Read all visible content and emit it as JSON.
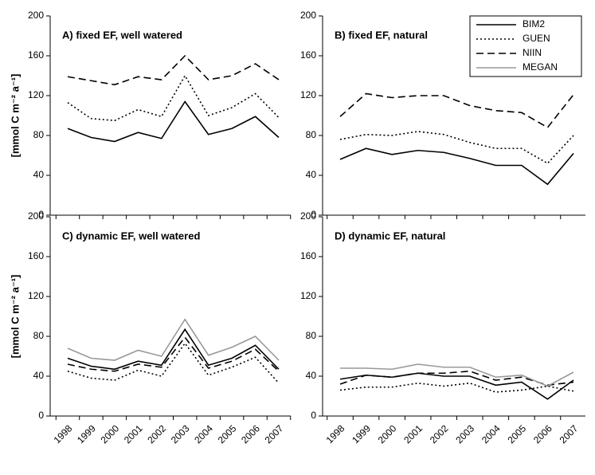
{
  "chart_data": [
    {
      "type": "line",
      "title": "A) fixed EF, well watered",
      "ylabel": "[mmol C m⁻² a⁻¹]",
      "ylim": [
        0,
        200
      ],
      "yticks": [
        0,
        40,
        80,
        120,
        160,
        200
      ],
      "series": [
        {
          "name": "BIM2",
          "color": "#000000",
          "dash": "solid",
          "values": [
            87,
            78,
            74,
            83,
            77,
            114,
            81,
            87,
            99,
            78
          ]
        },
        {
          "name": "GUEN",
          "color": "#000000",
          "dash": "dotted",
          "values": [
            113,
            97,
            95,
            106,
            99,
            140,
            100,
            108,
            122,
            98
          ]
        },
        {
          "name": "NIIN",
          "color": "#000000",
          "dash": "dashed",
          "values": [
            139,
            135,
            131,
            139,
            136,
            160,
            136,
            140,
            152,
            136
          ]
        }
      ]
    },
    {
      "type": "line",
      "title": "B) fixed EF, natural",
      "legend": "upper right",
      "ylim": [
        0,
        200
      ],
      "yticks": [
        0,
        40,
        80,
        120,
        160,
        200
      ],
      "series": [
        {
          "name": "BIM2",
          "color": "#000000",
          "dash": "solid",
          "values": [
            56,
            67,
            61,
            65,
            63,
            57,
            50,
            50,
            31,
            62
          ]
        },
        {
          "name": "GUEN",
          "color": "#000000",
          "dash": "dotted",
          "values": [
            76,
            81,
            80,
            84,
            81,
            73,
            67,
            67,
            52,
            80
          ]
        },
        {
          "name": "NIIN",
          "color": "#000000",
          "dash": "dashed",
          "values": [
            99,
            122,
            118,
            120,
            120,
            110,
            105,
            103,
            88,
            121
          ]
        },
        {
          "name": "MEGAN",
          "color": "#999999",
          "dash": "solid",
          "values": [
            null,
            null,
            null,
            null,
            null,
            null,
            null,
            null,
            null,
            null
          ]
        }
      ]
    },
    {
      "type": "line",
      "title": "C) dynamic EF, well watered",
      "ylabel": "[mmol C m⁻² a⁻¹]",
      "categories": [
        "1998",
        "1999",
        "2000",
        "2001",
        "2002",
        "2003",
        "2004",
        "2005",
        "2006",
        "2007"
      ],
      "ylim": [
        0,
        200
      ],
      "yticks": [
        0,
        40,
        80,
        120,
        160,
        200
      ],
      "series": [
        {
          "name": "BIM2",
          "color": "#000000",
          "dash": "solid",
          "values": [
            58,
            50,
            47,
            55,
            51,
            87,
            51,
            58,
            71,
            47
          ]
        },
        {
          "name": "GUEN",
          "color": "#000000",
          "dash": "dotted",
          "values": [
            45,
            38,
            36,
            46,
            40,
            73,
            41,
            49,
            59,
            33
          ]
        },
        {
          "name": "NIIN",
          "color": "#000000",
          "dash": "dashed",
          "values": [
            52,
            47,
            45,
            52,
            49,
            79,
            48,
            55,
            67,
            45
          ]
        },
        {
          "name": "MEGAN",
          "color": "#999999",
          "dash": "solid",
          "values": [
            68,
            58,
            56,
            66,
            60,
            97,
            61,
            69,
            80,
            56
          ]
        }
      ]
    },
    {
      "type": "line",
      "title": "D) dynamic EF, natural",
      "categories": [
        "1998",
        "1999",
        "2000",
        "2001",
        "2002",
        "2003",
        "2004",
        "2005",
        "2006",
        "2007"
      ],
      "ylim": [
        0,
        200
      ],
      "yticks": [
        0,
        40,
        80,
        120,
        160,
        200
      ],
      "series": [
        {
          "name": "BIM2",
          "color": "#000000",
          "dash": "solid",
          "values": [
            37,
            41,
            39,
            43,
            40,
            40,
            31,
            34,
            17,
            36
          ]
        },
        {
          "name": "GUEN",
          "color": "#000000",
          "dash": "dotted",
          "values": [
            26,
            29,
            29,
            33,
            30,
            33,
            24,
            26,
            30,
            25
          ]
        },
        {
          "name": "NIIN",
          "color": "#000000",
          "dash": "dashed",
          "values": [
            32,
            41,
            39,
            43,
            43,
            45,
            36,
            39,
            31,
            34
          ]
        },
        {
          "name": "MEGAN",
          "color": "#999999",
          "dash": "solid",
          "values": [
            48,
            48,
            47,
            52,
            49,
            49,
            39,
            41,
            30,
            44
          ]
        }
      ]
    }
  ]
}
